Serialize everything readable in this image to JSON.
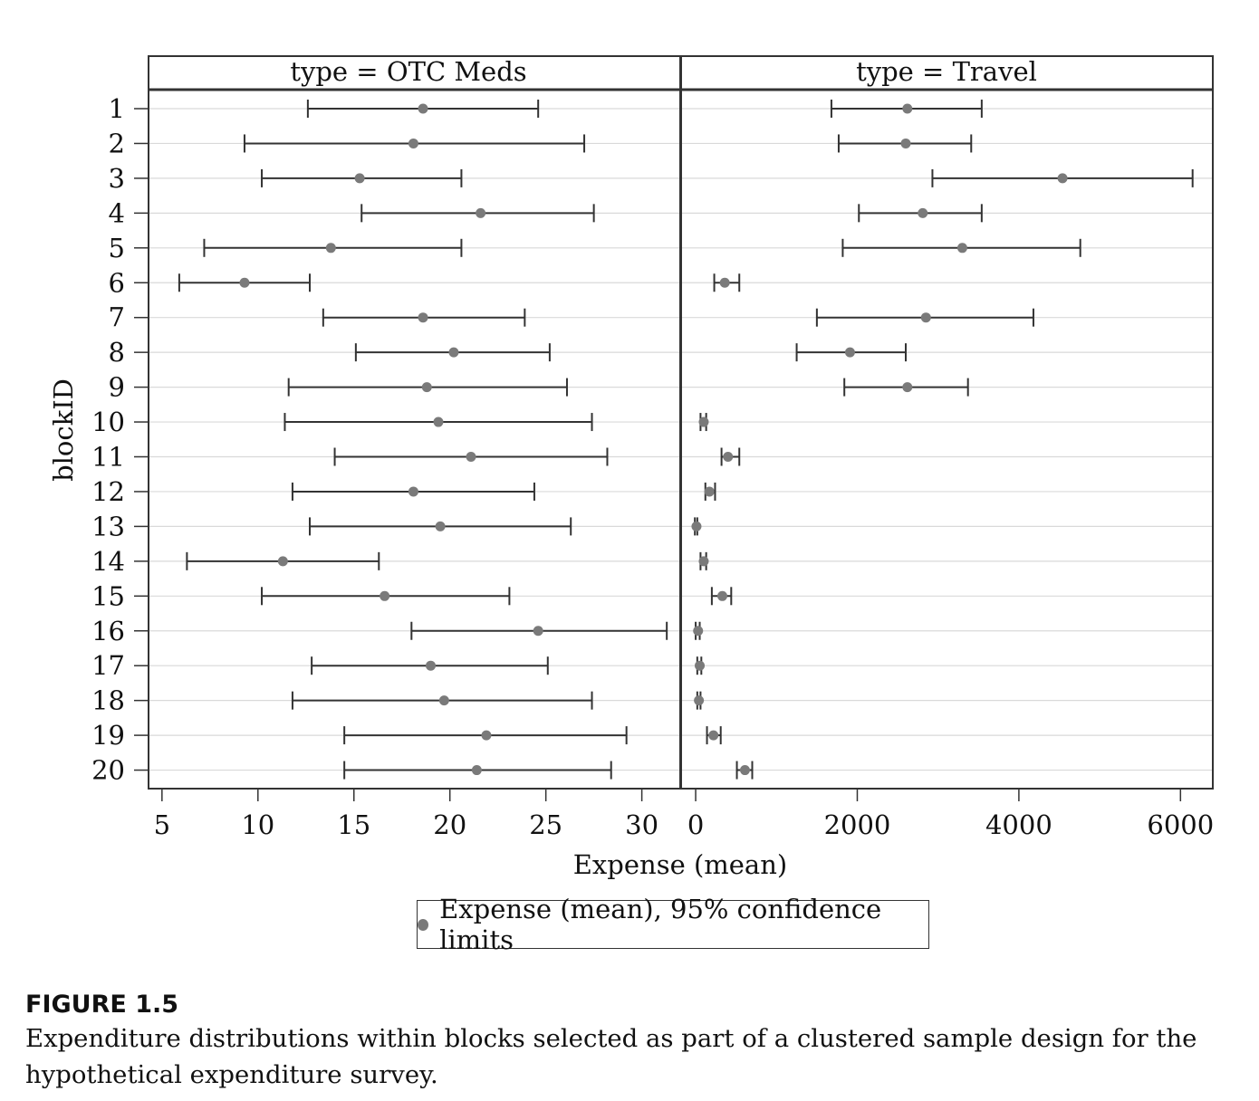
{
  "chart_data": {
    "type": "scatter",
    "title": "",
    "xlabel": "Expense (mean)",
    "ylabel": "blockID",
    "categories": [
      "1",
      "2",
      "3",
      "4",
      "5",
      "6",
      "7",
      "8",
      "9",
      "10",
      "11",
      "12",
      "13",
      "14",
      "15",
      "16",
      "17",
      "18",
      "19",
      "20"
    ],
    "legend": {
      "label": "Expense (mean), 95% confidence limits",
      "placement": "bottom-center"
    },
    "grid": true,
    "panels": [
      {
        "title": "type = OTC Meds",
        "xlim": [
          4.3,
          32.0
        ],
        "xticks": [
          "5",
          "10",
          "15",
          "20",
          "25",
          "30"
        ],
        "xtick_values": [
          5,
          10,
          15,
          20,
          25,
          30
        ],
        "mean": [
          18.6,
          18.1,
          15.3,
          21.6,
          13.8,
          9.3,
          18.6,
          20.2,
          18.8,
          19.4,
          21.1,
          18.1,
          19.5,
          11.3,
          16.6,
          24.6,
          19.0,
          19.7,
          21.9,
          21.4
        ],
        "lower": [
          12.6,
          9.3,
          10.2,
          15.4,
          7.2,
          5.9,
          13.4,
          15.1,
          11.6,
          11.4,
          14.0,
          11.8,
          12.7,
          6.3,
          10.2,
          18.0,
          12.8,
          11.8,
          14.5,
          14.5
        ],
        "upper": [
          24.6,
          27.0,
          20.6,
          27.5,
          20.6,
          12.7,
          23.9,
          25.2,
          26.1,
          27.4,
          28.2,
          24.4,
          26.3,
          16.3,
          23.1,
          31.3,
          25.1,
          27.4,
          29.2,
          28.4
        ]
      },
      {
        "title": "type = Travel",
        "xlim": [
          -180,
          6400
        ],
        "xticks": [
          "0",
          "2000",
          "4000",
          "6000"
        ],
        "xtick_values": [
          0,
          2000,
          4000,
          6000
        ],
        "mean": [
          2620,
          2600,
          4540,
          2810,
          3300,
          360,
          2850,
          1910,
          2620,
          100,
          400,
          170,
          10,
          100,
          330,
          30,
          50,
          40,
          220,
          610
        ],
        "lower": [
          1680,
          1770,
          2930,
          2020,
          1820,
          230,
          1500,
          1250,
          1840,
          60,
          320,
          120,
          -10,
          60,
          200,
          0,
          20,
          20,
          140,
          510
        ],
        "upper": [
          3540,
          3410,
          6150,
          3540,
          4760,
          540,
          4180,
          2600,
          3370,
          130,
          540,
          240,
          20,
          130,
          440,
          50,
          70,
          60,
          310,
          700
        ]
      }
    ]
  },
  "caption": {
    "label": "FIGURE 1.5",
    "text": "Expenditure distributions within blocks selected as part of a clustered sample design for the hypothetical expenditure survey."
  },
  "colors": {
    "marker": "#7a7a7a",
    "bar": "#333333",
    "grid": "#d9d9d9",
    "frame": "#333333"
  }
}
